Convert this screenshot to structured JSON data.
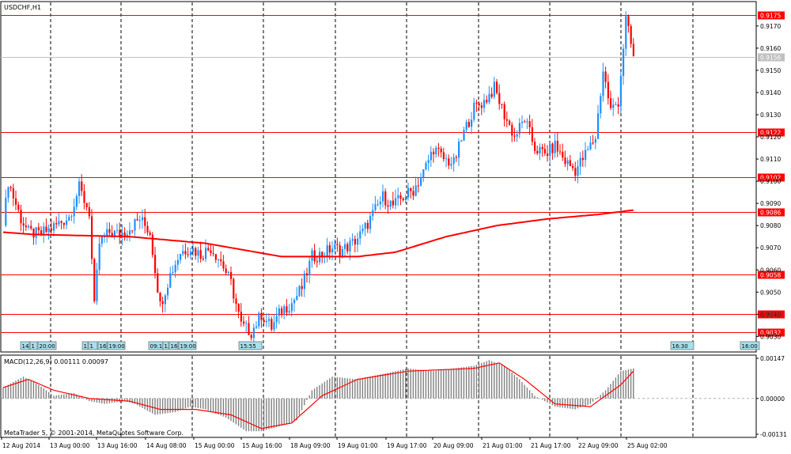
{
  "symbol_label": "USDCHF,H1",
  "copyright": "MetaTrader 5, © 2001-2014, MetaQuotes Software Corp.",
  "colors": {
    "background": "#ffffff",
    "frame": "#000000",
    "grid": "#000000",
    "bull_candle": "#1e90ff",
    "bear_candle": "#ff0000",
    "moving_average": "#ff0000",
    "hline": "#ff0000",
    "hline_label_bg": "#ff0000",
    "bid_line": "#c0c0c0",
    "bid_label_bg": "#c0c0c0",
    "macd_histogram": "#808080",
    "macd_signal": "#ff0000",
    "time_marker_bg": "#a8e0f0"
  },
  "price_axis": {
    "ticks": [
      "0.9170",
      "0.9160",
      "0.9150",
      "0.9140",
      "0.9130",
      "0.9120",
      "0.9110",
      "0.9100",
      "0.9090",
      "0.9080",
      "0.9070",
      "0.9060",
      "0.9050",
      "0.9040",
      "0.9030"
    ]
  },
  "horizontal_lines": [
    {
      "label": "0.9175",
      "price": 0.9175
    },
    {
      "label": "0.9122",
      "price": 0.9122
    },
    {
      "label": "0.9102",
      "price": 0.9102
    },
    {
      "label": "0.9086",
      "price": 0.9086
    },
    {
      "label": "0.9058",
      "price": 0.9058
    },
    {
      "label": "0.9040",
      "price": 0.904
    },
    {
      "label": "0.9032",
      "price": 0.9032
    }
  ],
  "bid_line": {
    "label": "0.9156",
    "price": 0.9156
  },
  "time_axis": {
    "labels": [
      "12 Aug 2014",
      "13 Aug 00:00",
      "13 Aug 16:00",
      "14 Aug 08:00",
      "15 Aug 00:00",
      "15 Aug 16:00",
      "18 Aug 09:00",
      "19 Aug 01:00",
      "19 Aug 17:00",
      "20 Aug 09:00",
      "21 Aug 01:00",
      "21 Aug 17:00",
      "22 Aug 09:00",
      "25 Aug 02:00"
    ]
  },
  "time_markers": [
    {
      "label": "14"
    },
    {
      "label": "1"
    },
    {
      "label": "20:00"
    },
    {
      "label": "1"
    },
    {
      "label": "1"
    },
    {
      "label": "16"
    },
    {
      "label": "19:00"
    },
    {
      "label": "09:1"
    },
    {
      "label": "1"
    },
    {
      "label": "16"
    },
    {
      "label": "19:00"
    },
    {
      "label": "15:55"
    },
    {
      "label": "16:30"
    },
    {
      "label": "16:00"
    }
  ],
  "macd": {
    "label": "MACD(12,26,9) 0.00111 0.00097",
    "axis_ticks": [
      "0.00147",
      "0.00000",
      "-0.00131"
    ]
  },
  "chart_data": {
    "type": "candlestick",
    "title": "USDCHF,H1",
    "ylim": [
      0.9023,
      0.9181
    ],
    "moving_average": [
      [
        0,
        0.9077
      ],
      [
        12,
        0.9076
      ],
      [
        50,
        0.9075
      ],
      [
        80,
        0.9072
      ],
      [
        110,
        0.9066
      ],
      [
        140,
        0.9066
      ],
      [
        155,
        0.9068
      ],
      [
        175,
        0.9075
      ],
      [
        195,
        0.908
      ],
      [
        215,
        0.9083
      ],
      [
        235,
        0.9085
      ],
      [
        249,
        0.9087
      ]
    ],
    "ohlc_path": [
      [
        0,
        0.908
      ],
      [
        2,
        0.91
      ],
      [
        4,
        0.9093
      ],
      [
        7,
        0.9083
      ],
      [
        10,
        0.9077
      ],
      [
        14,
        0.9076
      ],
      [
        18,
        0.9078
      ],
      [
        22,
        0.9081
      ],
      [
        26,
        0.9084
      ],
      [
        30,
        0.9097
      ],
      [
        34,
        0.9086
      ],
      [
        36,
        0.9043
      ],
      [
        38,
        0.9072
      ],
      [
        42,
        0.9077
      ],
      [
        46,
        0.9076
      ],
      [
        50,
        0.9079
      ],
      [
        54,
        0.9083
      ],
      [
        58,
        0.9077
      ],
      [
        62,
        0.9044
      ],
      [
        66,
        0.9058
      ],
      [
        70,
        0.9068
      ],
      [
        74,
        0.907
      ],
      [
        78,
        0.9067
      ],
      [
        82,
        0.907
      ],
      [
        86,
        0.9064
      ],
      [
        90,
        0.9054
      ],
      [
        94,
        0.9035
      ],
      [
        98,
        0.9032
      ],
      [
        102,
        0.904
      ],
      [
        106,
        0.9034
      ],
      [
        110,
        0.9042
      ],
      [
        114,
        0.9045
      ],
      [
        118,
        0.9052
      ],
      [
        122,
        0.9066
      ],
      [
        126,
        0.9067
      ],
      [
        130,
        0.907
      ],
      [
        134,
        0.9069
      ],
      [
        138,
        0.9072
      ],
      [
        142,
        0.9077
      ],
      [
        146,
        0.9085
      ],
      [
        150,
        0.9093
      ],
      [
        154,
        0.9089
      ],
      [
        158,
        0.9093
      ],
      [
        162,
        0.9096
      ],
      [
        166,
        0.9104
      ],
      [
        170,
        0.9115
      ],
      [
        174,
        0.911
      ],
      [
        178,
        0.9108
      ],
      [
        182,
        0.9122
      ],
      [
        186,
        0.9133
      ],
      [
        190,
        0.9136
      ],
      [
        194,
        0.9142
      ],
      [
        198,
        0.913
      ],
      [
        202,
        0.912
      ],
      [
        206,
        0.9128
      ],
      [
        210,
        0.9115
      ],
      [
        214,
        0.9112
      ],
      [
        218,
        0.9116
      ],
      [
        222,
        0.9109
      ],
      [
        226,
        0.9105
      ],
      [
        230,
        0.9112
      ],
      [
        234,
        0.912
      ],
      [
        237,
        0.915
      ],
      [
        240,
        0.9132
      ],
      [
        243,
        0.9136
      ],
      [
        246,
        0.9173
      ],
      [
        249,
        0.9156
      ]
    ],
    "macd": {
      "ylim": [
        -0.00131,
        0.00147
      ],
      "path": [
        [
          0,
          0.0004
        ],
        [
          8,
          0.0008
        ],
        [
          14,
          0.0005
        ],
        [
          20,
          0.0001
        ],
        [
          28,
          0.0002
        ],
        [
          34,
          -0.0001
        ],
        [
          40,
          -0.0002
        ],
        [
          48,
          -0.0001
        ],
        [
          52,
          -0.0002
        ],
        [
          60,
          -0.0006
        ],
        [
          68,
          -0.0005
        ],
        [
          74,
          -0.0003
        ],
        [
          80,
          -0.0004
        ],
        [
          88,
          -0.0007
        ],
        [
          96,
          -0.0012
        ],
        [
          102,
          -0.0012
        ],
        [
          110,
          -0.001
        ],
        [
          116,
          -0.0008
        ],
        [
          122,
          0.0003
        ],
        [
          130,
          0.0008
        ],
        [
          140,
          0.0007
        ],
        [
          150,
          0.0009
        ],
        [
          160,
          0.0011
        ],
        [
          170,
          0.001
        ],
        [
          178,
          0.0011
        ],
        [
          186,
          0.0012
        ],
        [
          192,
          0.0014
        ],
        [
          198,
          0.0012
        ],
        [
          204,
          0.0007
        ],
        [
          210,
          0.0001
        ],
        [
          218,
          -0.0003
        ],
        [
          226,
          -0.0004
        ],
        [
          232,
          -0.0002
        ],
        [
          238,
          0.0003
        ],
        [
          244,
          0.001
        ],
        [
          249,
          0.0011
        ]
      ],
      "signal": [
        [
          0,
          0.0004
        ],
        [
          10,
          0.0007
        ],
        [
          20,
          0.0003
        ],
        [
          34,
          0.0
        ],
        [
          50,
          -0.0001
        ],
        [
          62,
          -0.0004
        ],
        [
          76,
          -0.0004
        ],
        [
          90,
          -0.0006
        ],
        [
          102,
          -0.0011
        ],
        [
          114,
          -0.0009
        ],
        [
          126,
          0.0001
        ],
        [
          140,
          0.0007
        ],
        [
          160,
          0.001
        ],
        [
          186,
          0.0011
        ],
        [
          196,
          0.0013
        ],
        [
          206,
          0.0007
        ],
        [
          218,
          -0.0002
        ],
        [
          232,
          -0.0003
        ],
        [
          244,
          0.0005
        ],
        [
          249,
          0.001
        ]
      ]
    }
  }
}
